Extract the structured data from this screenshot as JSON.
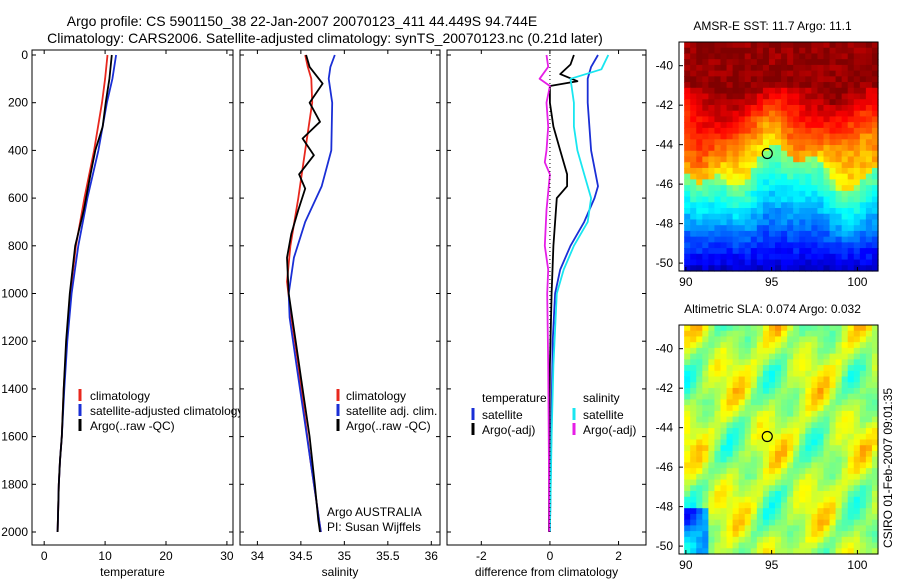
{
  "title": {
    "line1": "Argo profile: CS 5901150_38 22-Jan-2007 20070123_411 44.449S 94.744E",
    "line2": "Climatology: CARS2006. Satellite-adjusted climatology: synTS_20070123.nc (0.21d later)"
  },
  "side_label": "CSIRO 01-Feb-2007 09:01:35",
  "colors": {
    "red": "#e8281e",
    "blue": "#1a2fd6",
    "black": "#000000",
    "cyan": "#19e6f0",
    "magenta": "#e61ee6"
  },
  "chart_data": [
    {
      "id": "temp",
      "type": "line",
      "xlabel": "temperature",
      "xlim": [
        -2,
        31
      ],
      "ylim": [
        0,
        2050
      ],
      "y_reversed": true,
      "xticks": [
        0,
        10,
        20,
        30
      ],
      "yticks": [
        0,
        200,
        400,
        600,
        800,
        1000,
        1200,
        1400,
        1600,
        1800,
        2000
      ],
      "ytick_labels_shown": true,
      "legend": {
        "position": "lower-right",
        "entries": [
          {
            "label": "climatology",
            "color": "red"
          },
          {
            "label": "satellite-adjusted climatology",
            "color": "blue"
          },
          {
            "label": "Argo(..raw -QC)",
            "color": "black"
          }
        ]
      },
      "series": [
        {
          "name": "climatology",
          "color": "red",
          "x": [
            10.4,
            10.0,
            9.5,
            8.2,
            6.6,
            5.2,
            4.3,
            3.7,
            3.2,
            2.9,
            2.6,
            2.4,
            2.3,
            2.2
          ],
          "y": [
            0,
            100,
            200,
            400,
            600,
            800,
            1000,
            1200,
            1400,
            1600,
            1700,
            1800,
            1900,
            2000
          ]
        },
        {
          "name": "satellite-adjusted climatology",
          "color": "blue",
          "x": [
            11.8,
            11.2,
            10.3,
            8.9,
            7.1,
            5.6,
            4.5,
            3.8,
            3.3,
            2.9,
            2.6,
            2.4,
            2.3,
            2.2
          ],
          "y": [
            0,
            100,
            200,
            400,
            600,
            800,
            1000,
            1200,
            1400,
            1600,
            1700,
            1800,
            1900,
            2000
          ]
        },
        {
          "name": "Argo(..raw -QC)",
          "color": "black",
          "x": [
            11.1,
            10.7,
            10.1,
            9.6,
            8.4,
            7.6,
            6.5,
            5.1,
            4.2,
            3.6,
            3.2,
            2.9,
            2.6,
            2.4,
            2.3,
            2.2
          ],
          "y": [
            0,
            100,
            200,
            300,
            400,
            500,
            650,
            800,
            1000,
            1200,
            1400,
            1600,
            1700,
            1800,
            1900,
            2000
          ]
        }
      ]
    },
    {
      "id": "sal",
      "type": "line",
      "xlabel": "salinity",
      "xlim": [
        33.8,
        36.1
      ],
      "ylim": [
        0,
        2050
      ],
      "y_reversed": true,
      "xticks": [
        34,
        34.5,
        35,
        35.5,
        36
      ],
      "yticks": [
        0,
        200,
        400,
        600,
        800,
        1000,
        1200,
        1400,
        1600,
        1800,
        2000
      ],
      "ytick_labels_shown": false,
      "legend": {
        "position": "lower-right",
        "entries": [
          {
            "label": "climatology",
            "color": "red"
          },
          {
            "label": "satellite adj. clim.",
            "color": "blue"
          },
          {
            "label": "Argo(..raw -QC)",
            "color": "black"
          }
        ]
      },
      "annotations": [
        "Argo AUSTRALIA",
        "PI: Susan Wijffels"
      ],
      "series": [
        {
          "name": "climatology",
          "color": "red",
          "x": [
            34.55,
            34.58,
            34.62,
            34.63,
            34.55,
            34.47,
            34.38,
            34.34,
            34.39,
            34.47,
            34.54,
            34.61,
            34.67,
            34.71,
            34.73
          ],
          "y": [
            0,
            50,
            100,
            200,
            400,
            600,
            800,
            950,
            1100,
            1300,
            1500,
            1700,
            1850,
            1950,
            2000
          ]
        },
        {
          "name": "satellite adj. clim.",
          "color": "blue",
          "x": [
            34.89,
            34.84,
            34.82,
            34.86,
            34.85,
            34.74,
            34.55,
            34.42,
            34.36,
            34.37,
            34.45,
            34.53,
            34.61,
            34.67,
            34.71,
            34.73
          ],
          "y": [
            0,
            50,
            100,
            200,
            400,
            550,
            700,
            850,
            1000,
            1100,
            1300,
            1500,
            1700,
            1850,
            1950,
            2000
          ]
        },
        {
          "name": "Argo(..raw -QC)",
          "color": "black",
          "x": [
            34.56,
            34.6,
            34.75,
            34.6,
            34.72,
            34.52,
            34.65,
            34.48,
            34.55,
            34.47,
            34.39,
            34.34,
            34.36,
            34.44,
            34.52,
            34.6,
            34.66,
            34.7,
            34.72
          ],
          "y": [
            0,
            50,
            120,
            200,
            280,
            350,
            420,
            500,
            560,
            650,
            750,
            850,
            1000,
            1200,
            1400,
            1600,
            1800,
            1950,
            2000
          ]
        }
      ]
    },
    {
      "id": "diff",
      "type": "line",
      "xlabel": "difference from climatology",
      "xlim": [
        -3.0,
        2.8
      ],
      "ylim": [
        0,
        2050
      ],
      "y_reversed": true,
      "xticks": [
        -2,
        0,
        2
      ],
      "yticks": [
        0,
        200,
        400,
        600,
        800,
        1000,
        1200,
        1400,
        1600,
        1800,
        2000
      ],
      "ytick_labels_shown": false,
      "legend": {
        "position": "lower",
        "groups": [
          {
            "header": "temperature",
            "entries": [
              {
                "label": "satellite",
                "color": "blue"
              },
              {
                "label": "Argo(-adj)",
                "color": "black"
              }
            ]
          },
          {
            "header": "salinity",
            "entries": [
              {
                "label": "satellite",
                "color": "cyan"
              },
              {
                "label": "Argo(-adj)",
                "color": "magenta"
              }
            ]
          }
        ]
      },
      "series": [
        {
          "name": "temperature satellite",
          "color": "blue",
          "x": [
            1.4,
            1.2,
            1.1,
            1.1,
            1.2,
            1.4,
            1.3,
            1.0,
            0.6,
            0.3,
            0.15,
            0.08,
            0.05,
            0.02,
            0.0
          ],
          "y": [
            0,
            50,
            100,
            200,
            400,
            550,
            600,
            700,
            800,
            900,
            1000,
            1200,
            1500,
            1800,
            2000
          ]
        },
        {
          "name": "temperature Argo(-adj)",
          "color": "black",
          "x": [
            0.7,
            0.6,
            0.3,
            0.8,
            0.0,
            0.0,
            0.1,
            0.3,
            0.5,
            0.5,
            0.2,
            0.1,
            0.05,
            0.0,
            -0.02,
            -0.03
          ],
          "y": [
            0,
            40,
            80,
            110,
            130,
            200,
            300,
            400,
            500,
            550,
            600,
            800,
            1000,
            1300,
            1700,
            2000
          ]
        },
        {
          "name": "salinity satellite",
          "color": "cyan",
          "x": [
            1.7,
            1.6,
            1.5,
            0.6,
            0.7,
            0.7,
            0.8,
            1.0,
            1.2,
            1.1,
            0.7,
            0.4,
            0.2,
            0.1,
            0.05,
            0.0
          ],
          "y": [
            0,
            30,
            60,
            100,
            200,
            300,
            400,
            500,
            600,
            700,
            800,
            900,
            1000,
            1300,
            1600,
            2000
          ]
        },
        {
          "name": "salinity Argo(-adj)",
          "color": "magenta",
          "x": [
            -0.1,
            -0.05,
            -0.3,
            0.0,
            -0.1,
            -0.05,
            -0.1,
            -0.15,
            0.0,
            -0.1,
            -0.15,
            -0.05,
            -0.08,
            -0.05,
            -0.03,
            -0.02
          ],
          "y": [
            0,
            50,
            100,
            130,
            200,
            300,
            400,
            450,
            500,
            650,
            800,
            900,
            1000,
            1300,
            1700,
            2000
          ]
        }
      ]
    },
    {
      "id": "sst_map",
      "type": "heatmap",
      "title": "AMSR-E SST: 11.7 Argo: 11.1",
      "xlim": [
        89.6,
        101.2
      ],
      "ylim": [
        -50.4,
        -38.8
      ],
      "xticks": [
        90,
        95,
        100
      ],
      "yticks": [
        -40,
        -42,
        -44,
        -46,
        -48,
        -50
      ],
      "colormap": "jet",
      "data_xrange": [
        89.9,
        101.2
      ],
      "marker": {
        "lon": 94.744,
        "lat": -44.449
      }
    },
    {
      "id": "sla_map",
      "type": "heatmap",
      "title": "Altimetric SLA: 0.074 Argo: 0.032",
      "xlim": [
        89.6,
        101.2
      ],
      "ylim": [
        -50.4,
        -38.8
      ],
      "xticks": [
        90,
        95,
        100
      ],
      "yticks": [
        -40,
        -42,
        -44,
        -46,
        -48,
        -50
      ],
      "colormap": "jet",
      "data_xrange": [
        89.9,
        101.2
      ],
      "marker": {
        "lon": 94.744,
        "lat": -44.449
      }
    }
  ]
}
